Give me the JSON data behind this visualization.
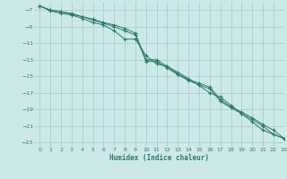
{
  "xlabel": "Humidex (Indice chaleur)",
  "ylabel": "",
  "bg_color": "#cce8e8",
  "grid_color": "#aacece",
  "line_color": "#2a7a6a",
  "xlim": [
    -0.5,
    23
  ],
  "ylim": [
    -23.5,
    -6.0
  ],
  "yticks": [
    -7,
    -9,
    -11,
    -13,
    -15,
    -17,
    -19,
    -21,
    -23
  ],
  "xticks": [
    0,
    1,
    2,
    3,
    4,
    5,
    6,
    7,
    8,
    9,
    10,
    11,
    12,
    13,
    14,
    15,
    16,
    17,
    18,
    19,
    20,
    21,
    22,
    23
  ],
  "line1_x": [
    0,
    1,
    2,
    3,
    4,
    5,
    6,
    7,
    8,
    9,
    10,
    11,
    12,
    13,
    14,
    15,
    16,
    17,
    18,
    19,
    20,
    21,
    22,
    23
  ],
  "line1_y": [
    -6.5,
    -7.1,
    -7.4,
    -7.6,
    -8.0,
    -8.5,
    -8.8,
    -9.5,
    -10.5,
    -10.5,
    -12.5,
    -13.5,
    -13.8,
    -14.5,
    -15.3,
    -16.1,
    -17.0,
    -17.5,
    -18.5,
    -19.5,
    -20.5,
    -21.5,
    -22.0,
    -22.5
  ],
  "line2_x": [
    0,
    1,
    2,
    3,
    4,
    5,
    6,
    7,
    8,
    9,
    10,
    11,
    12,
    13,
    14,
    15,
    16,
    17,
    18,
    19,
    20,
    21,
    22,
    23
  ],
  "line2_y": [
    -6.5,
    -7.0,
    -7.2,
    -7.5,
    -7.8,
    -8.2,
    -8.6,
    -9.0,
    -9.5,
    -10.0,
    -13.2,
    -13.2,
    -14.0,
    -14.8,
    -15.5,
    -16.0,
    -16.5,
    -18.0,
    -18.8,
    -19.5,
    -20.2,
    -21.0,
    -22.0,
    -22.5
  ],
  "line3_x": [
    0,
    1,
    2,
    3,
    4,
    5,
    6,
    7,
    8,
    9,
    10,
    11,
    12,
    13,
    14,
    15,
    16,
    17,
    18,
    19,
    20,
    21,
    22,
    23
  ],
  "line3_y": [
    -6.5,
    -7.0,
    -7.2,
    -7.4,
    -7.8,
    -8.1,
    -8.5,
    -8.8,
    -9.2,
    -9.8,
    -13.0,
    -13.0,
    -13.8,
    -14.7,
    -15.4,
    -15.8,
    -16.3,
    -17.8,
    -18.7,
    -19.3,
    -20.0,
    -20.8,
    -21.5,
    -22.5
  ]
}
